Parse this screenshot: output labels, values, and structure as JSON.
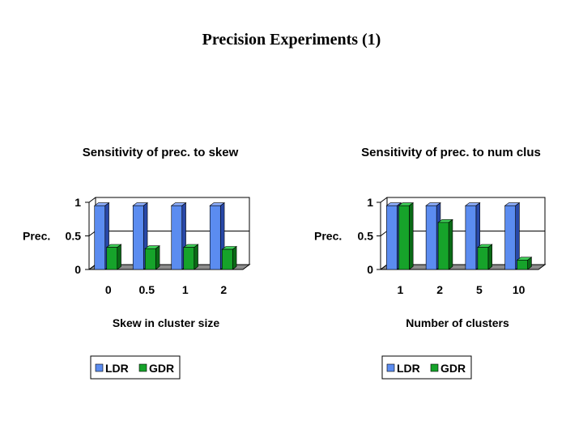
{
  "slide": {
    "title": "Precision Experiments (1)"
  },
  "colors": {
    "ldr_front": "#5b8cf0",
    "ldr_side": "#2848a8",
    "ldr_top": "#8fb0ff",
    "gdr_front": "#16a32a",
    "gdr_side": "#0a6a16",
    "gdr_top": "#3fd058",
    "wall": "#ffffff",
    "floor": "#8c8c8c",
    "axis": "#000000"
  },
  "chart_data": [
    {
      "type": "bar",
      "title": "Sensitivity of prec. to skew",
      "xlabel": "Skew in cluster size",
      "ylabel": "Prec.",
      "categories": [
        "0",
        "0.5",
        "1",
        "2"
      ],
      "yticks": [
        "0",
        "0.5",
        "1"
      ],
      "ylim": [
        0,
        1
      ],
      "series": [
        {
          "name": "LDR",
          "values": [
            0.95,
            0.95,
            0.95,
            0.95
          ]
        },
        {
          "name": "GDR",
          "values": [
            0.33,
            0.31,
            0.33,
            0.3
          ]
        }
      ],
      "legend": [
        "LDR",
        "GDR"
      ]
    },
    {
      "type": "bar",
      "title": "Sensitivity of prec. to num clus",
      "xlabel": "Number of clusters",
      "ylabel": "Prec.",
      "categories": [
        "1",
        "2",
        "5",
        "10"
      ],
      "yticks": [
        "0",
        "0.5",
        "1"
      ],
      "ylim": [
        0,
        1
      ],
      "series": [
        {
          "name": "LDR",
          "values": [
            0.95,
            0.95,
            0.95,
            0.95
          ]
        },
        {
          "name": "GDR",
          "values": [
            0.95,
            0.7,
            0.33,
            0.14
          ]
        }
      ],
      "legend": [
        "LDR",
        "GDR"
      ]
    }
  ]
}
